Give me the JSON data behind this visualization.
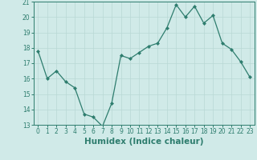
{
  "x": [
    0,
    1,
    2,
    3,
    4,
    5,
    6,
    7,
    8,
    9,
    10,
    11,
    12,
    13,
    14,
    15,
    16,
    17,
    18,
    19,
    20,
    21,
    22,
    23
  ],
  "y": [
    17.8,
    16.0,
    16.5,
    15.8,
    15.4,
    13.7,
    13.5,
    12.9,
    14.4,
    17.5,
    17.3,
    17.7,
    18.1,
    18.3,
    19.3,
    20.8,
    20.0,
    20.7,
    19.6,
    20.1,
    18.3,
    17.9,
    17.1,
    16.1
  ],
  "line_color": "#2e7d6e",
  "marker": "D",
  "marker_size": 2.0,
  "bg_color": "#d0eae8",
  "grid_color": "#b8d8d5",
  "xlabel": "Humidex (Indice chaleur)",
  "ylim": [
    13,
    21
  ],
  "xlim": [
    -0.5,
    23.5
  ],
  "yticks": [
    13,
    14,
    15,
    16,
    17,
    18,
    19,
    20,
    21
  ],
  "xticks": [
    0,
    1,
    2,
    3,
    4,
    5,
    6,
    7,
    8,
    9,
    10,
    11,
    12,
    13,
    14,
    15,
    16,
    17,
    18,
    19,
    20,
    21,
    22,
    23
  ],
  "tick_fontsize": 5.5,
  "label_fontsize": 7.5,
  "linewidth": 0.9
}
